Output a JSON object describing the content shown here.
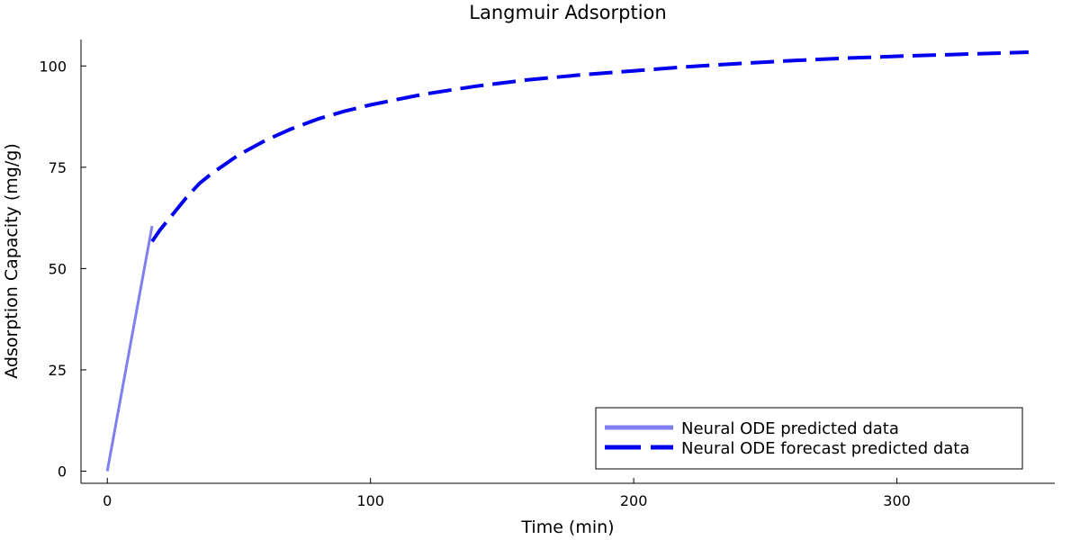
{
  "chart_data": {
    "type": "line",
    "title": "Langmuir Adsorption",
    "xlabel": "Time (min)",
    "ylabel": "Adsorption Capacity (mg/g)",
    "xlim": [
      -10,
      360
    ],
    "ylim": [
      -3,
      106.5
    ],
    "xticks": [
      0,
      100,
      200,
      300
    ],
    "yticks": [
      0,
      25,
      50,
      75,
      100
    ],
    "grid": false,
    "legend_position": "bottom-right",
    "series": [
      {
        "name": "Neural ODE predicted data",
        "style": "solid",
        "color": "#7f7fef",
        "x": [
          0,
          17
        ],
        "y": [
          0,
          60.5
        ]
      },
      {
        "name": "Neural ODE forecast predicted data",
        "style": "dashed",
        "color": "#0000ee",
        "x": [
          17,
          20,
          25,
          30,
          35,
          40,
          50,
          60,
          70,
          80,
          90,
          100,
          120,
          140,
          160,
          180,
          200,
          220,
          240,
          260,
          280,
          300,
          320,
          350
        ],
        "y": [
          56.7,
          59.5,
          63.5,
          67.5,
          71.0,
          73.6,
          78.1,
          81.6,
          84.5,
          86.9,
          88.8,
          90.4,
          93.0,
          95.0,
          96.6,
          97.8,
          98.8,
          99.8,
          100.6,
          101.3,
          101.9,
          102.4,
          102.8,
          103.4
        ]
      }
    ]
  }
}
